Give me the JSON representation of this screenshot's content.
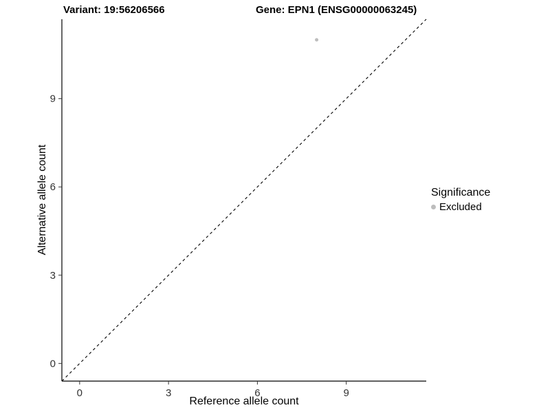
{
  "titles": {
    "left": "Variant: 19:56206566",
    "right": "Gene: EPN1 (ENSG00000063245)"
  },
  "chart_data": {
    "type": "scatter",
    "xlabel": "Reference allele count",
    "ylabel": "Alternative allele count",
    "xlim": [
      -0.6,
      11.7
    ],
    "ylim": [
      -0.6,
      11.7
    ],
    "xticks": [
      0,
      3,
      6,
      9
    ],
    "yticks": [
      0,
      3,
      6,
      9
    ],
    "grid": false,
    "points": [
      {
        "x": 8,
        "y": 11,
        "significance": "Excluded"
      }
    ],
    "point_color": "#bdbdbd",
    "identity_line": {
      "style": "dashed",
      "from": [
        -0.6,
        -0.6
      ],
      "to": [
        11.7,
        11.7
      ],
      "color": "#000000"
    },
    "axis_color": "#000000",
    "tick_label_color": "#333333",
    "legend_position": "right",
    "legend": {
      "title": "Significance",
      "entries": [
        {
          "label": "Excluded",
          "color": "#bdbdbd"
        }
      ]
    }
  }
}
